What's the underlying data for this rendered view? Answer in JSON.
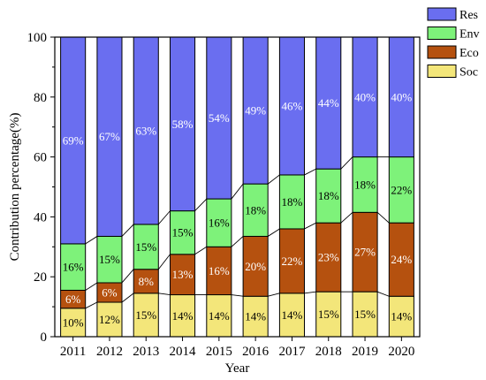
{
  "chart_data": {
    "type": "bar",
    "stacked": true,
    "xlabel": "Year",
    "ylabel": "Contribution percentage(%)",
    "ylim": [
      0,
      100
    ],
    "yticks": [
      0,
      20,
      40,
      60,
      80,
      100
    ],
    "categories": [
      "2011",
      "2012",
      "2013",
      "2014",
      "2015",
      "2016",
      "2017",
      "2018",
      "2019",
      "2020"
    ],
    "legend_position": "top-right, outside plot",
    "series": [
      {
        "name": "Soc",
        "color": "#f3e67a",
        "text_color": "#000000",
        "values": [
          9.5,
          11.5,
          14.5,
          14,
          14,
          13.5,
          14.5,
          15,
          15,
          13.5
        ],
        "labels": [
          "10%",
          "12%",
          "15%",
          "14%",
          "14%",
          "14%",
          "14%",
          "15%",
          "15%",
          "14%"
        ]
      },
      {
        "name": "Eco",
        "color": "#b5510f",
        "text_color": "#ffffff",
        "values": [
          6,
          6.5,
          8,
          13.5,
          16,
          20,
          21.5,
          23,
          26.5,
          24.5
        ],
        "labels": [
          "6%",
          "6%",
          "8%",
          "13%",
          "16%",
          "20%",
          "22%",
          "23%",
          "27%",
          "24%"
        ]
      },
      {
        "name": "Env",
        "color": "#7ef27a",
        "text_color": "#000000",
        "values": [
          15.5,
          15.5,
          15,
          14.5,
          16,
          17.5,
          18,
          18,
          18.5,
          22
        ],
        "labels": [
          "16%",
          "15%",
          "15%",
          "15%",
          "16%",
          "18%",
          "18%",
          "18%",
          "18%",
          "22%"
        ]
      },
      {
        "name": "Res",
        "color": "#6a6ef0",
        "text_color": "#ffffff",
        "values": [
          69,
          66.5,
          62.5,
          58,
          54,
          49,
          46,
          44,
          40,
          40
        ],
        "labels": [
          "69%",
          "67%",
          "63%",
          "58%",
          "54%",
          "49%",
          "46%",
          "44%",
          "40%",
          "40%"
        ]
      }
    ],
    "legend_order": [
      "Res",
      "Env",
      "Eco",
      "Soc"
    ]
  }
}
